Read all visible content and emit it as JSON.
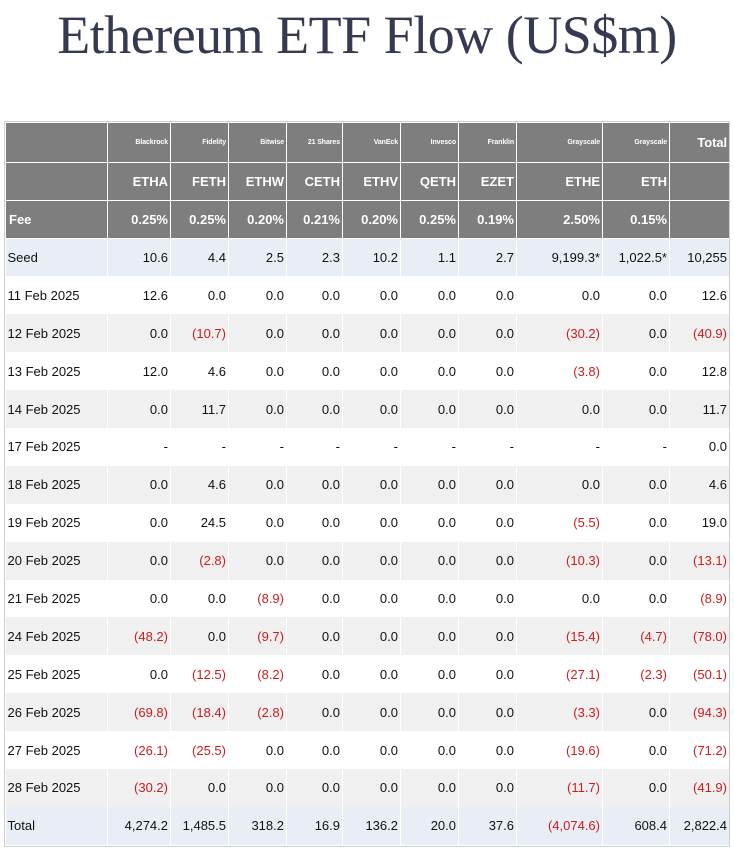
{
  "title": "Ethereum ETF Flow (US$m)",
  "chart_data": {
    "type": "table",
    "title": "Ethereum ETF Flow (US$m)",
    "issuers": [
      "Blackrock",
      "Fidelity",
      "Bitwise",
      "21 Shares",
      "VanEck",
      "Invesco",
      "Franklin",
      "Grayscale",
      "Grayscale"
    ],
    "tickers": [
      "ETHA",
      "FETH",
      "ETHW",
      "CETH",
      "ETHV",
      "QETH",
      "EZET",
      "ETHE",
      "ETH"
    ],
    "fee_label": "Fee",
    "fees": [
      "0.25%",
      "0.25%",
      "0.20%",
      "0.21%",
      "0.20%",
      "0.25%",
      "0.19%",
      "2.50%",
      "0.15%"
    ],
    "total_label": "Total",
    "rows": [
      {
        "label": "Seed",
        "values": [
          "10.6",
          "4.4",
          "2.5",
          "2.3",
          "10.2",
          "1.1",
          "2.7",
          "9,199.3*",
          "1,022.5*"
        ],
        "total": "10,255"
      },
      {
        "label": "11 Feb 2025",
        "values": [
          "12.6",
          "0.0",
          "0.0",
          "0.0",
          "0.0",
          "0.0",
          "0.0",
          "0.0",
          "0.0"
        ],
        "total": "12.6"
      },
      {
        "label": "12 Feb 2025",
        "values": [
          "0.0",
          "(10.7)",
          "0.0",
          "0.0",
          "0.0",
          "0.0",
          "0.0",
          "(30.2)",
          "0.0"
        ],
        "total": "(40.9)"
      },
      {
        "label": "13 Feb 2025",
        "values": [
          "12.0",
          "4.6",
          "0.0",
          "0.0",
          "0.0",
          "0.0",
          "0.0",
          "(3.8)",
          "0.0"
        ],
        "total": "12.8"
      },
      {
        "label": "14 Feb 2025",
        "values": [
          "0.0",
          "11.7",
          "0.0",
          "0.0",
          "0.0",
          "0.0",
          "0.0",
          "0.0",
          "0.0"
        ],
        "total": "11.7"
      },
      {
        "label": "17 Feb 2025",
        "values": [
          "-",
          "-",
          "-",
          "-",
          "-",
          "-",
          "-",
          "-",
          "-"
        ],
        "total": "0.0"
      },
      {
        "label": "18 Feb 2025",
        "values": [
          "0.0",
          "4.6",
          "0.0",
          "0.0",
          "0.0",
          "0.0",
          "0.0",
          "0.0",
          "0.0"
        ],
        "total": "4.6"
      },
      {
        "label": "19 Feb 2025",
        "values": [
          "0.0",
          "24.5",
          "0.0",
          "0.0",
          "0.0",
          "0.0",
          "0.0",
          "(5.5)",
          "0.0"
        ],
        "total": "19.0"
      },
      {
        "label": "20 Feb 2025",
        "values": [
          "0.0",
          "(2.8)",
          "0.0",
          "0.0",
          "0.0",
          "0.0",
          "0.0",
          "(10.3)",
          "0.0"
        ],
        "total": "(13.1)"
      },
      {
        "label": "21 Feb 2025",
        "values": [
          "0.0",
          "0.0",
          "(8.9)",
          "0.0",
          "0.0",
          "0.0",
          "0.0",
          "0.0",
          "0.0"
        ],
        "total": "(8.9)"
      },
      {
        "label": "24 Feb 2025",
        "values": [
          "(48.2)",
          "0.0",
          "(9.7)",
          "0.0",
          "0.0",
          "0.0",
          "0.0",
          "(15.4)",
          "(4.7)"
        ],
        "total": "(78.0)"
      },
      {
        "label": "25 Feb 2025",
        "values": [
          "0.0",
          "(12.5)",
          "(8.2)",
          "0.0",
          "0.0",
          "0.0",
          "0.0",
          "(27.1)",
          "(2.3)"
        ],
        "total": "(50.1)"
      },
      {
        "label": "26 Feb 2025",
        "values": [
          "(69.8)",
          "(18.4)",
          "(2.8)",
          "0.0",
          "0.0",
          "0.0",
          "0.0",
          "(3.3)",
          "0.0"
        ],
        "total": "(94.3)"
      },
      {
        "label": "27 Feb 2025",
        "values": [
          "(26.1)",
          "(25.5)",
          "0.0",
          "0.0",
          "0.0",
          "0.0",
          "0.0",
          "(19.6)",
          "0.0"
        ],
        "total": "(71.2)"
      },
      {
        "label": "28 Feb 2025",
        "values": [
          "(30.2)",
          "0.0",
          "0.0",
          "0.0",
          "0.0",
          "0.0",
          "0.0",
          "(11.7)",
          "0.0"
        ],
        "total": "(41.9)"
      },
      {
        "label": "Total",
        "values": [
          "4,274.2",
          "1,485.5",
          "318.2",
          "16.9",
          "136.2",
          "20.0",
          "37.6",
          "(4,074.6)",
          "608.4"
        ],
        "total": "2,822.4"
      }
    ]
  },
  "colors": {
    "title": "#353a52",
    "header_bg": "#7e7e7e",
    "header_text": "#ffffff",
    "negative": "#d01c1c",
    "seed_total_bg": "#e9eef6",
    "stripe_bg": "#f0f0f0"
  }
}
